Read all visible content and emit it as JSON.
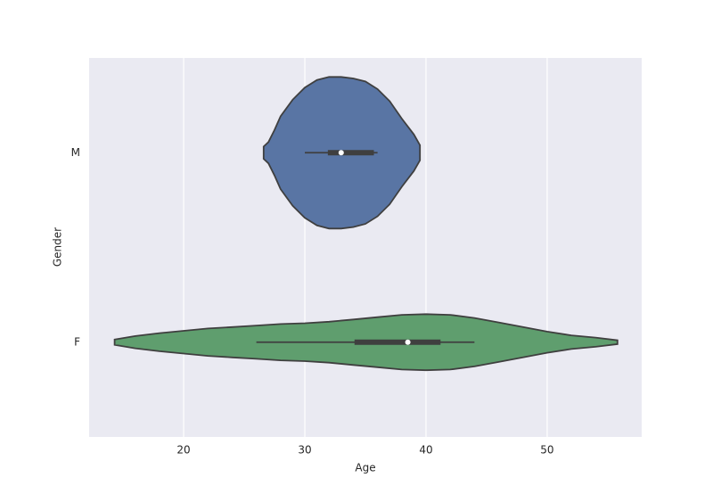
{
  "chart_data": {
    "type": "violin",
    "orientation": "horizontal",
    "xlabel": "Age",
    "ylabel": "Gender",
    "categories": [
      "M",
      "F"
    ],
    "xlim": [
      12.2,
      57.8
    ],
    "xticks": [
      20,
      30,
      40,
      50
    ],
    "grid": true,
    "series": [
      {
        "color": "#5975a4",
        "density_x": [
          26.6,
          27,
          27.5,
          28,
          29,
          30,
          31,
          32,
          33,
          34,
          35,
          36,
          37,
          38,
          39,
          39.5
        ],
        "density": [
          0.08,
          0.14,
          0.3,
          0.48,
          0.7,
          0.86,
          0.96,
          1.0,
          1.0,
          0.98,
          0.94,
          0.84,
          0.68,
          0.45,
          0.24,
          0.1
        ],
        "whisker_low": 30.0,
        "q1": 31.9,
        "median": 33.0,
        "q3": 35.7,
        "whisker_high": 36.0
      },
      {
        "color": "#5f9e6e",
        "density_x": [
          14.3,
          16,
          18,
          20,
          22,
          24,
          26,
          28,
          30,
          32,
          34,
          36,
          38,
          40,
          42,
          44,
          46,
          48,
          50,
          52,
          54,
          55.8
        ],
        "density": [
          0.035,
          0.08,
          0.12,
          0.15,
          0.18,
          0.2,
          0.22,
          0.24,
          0.25,
          0.27,
          0.3,
          0.33,
          0.36,
          0.37,
          0.36,
          0.32,
          0.26,
          0.2,
          0.14,
          0.09,
          0.06,
          0.025
        ],
        "whisker_low": 26.0,
        "q1": 34.1,
        "median": 38.5,
        "q3": 41.2,
        "whisker_high": 44.0
      }
    ]
  }
}
